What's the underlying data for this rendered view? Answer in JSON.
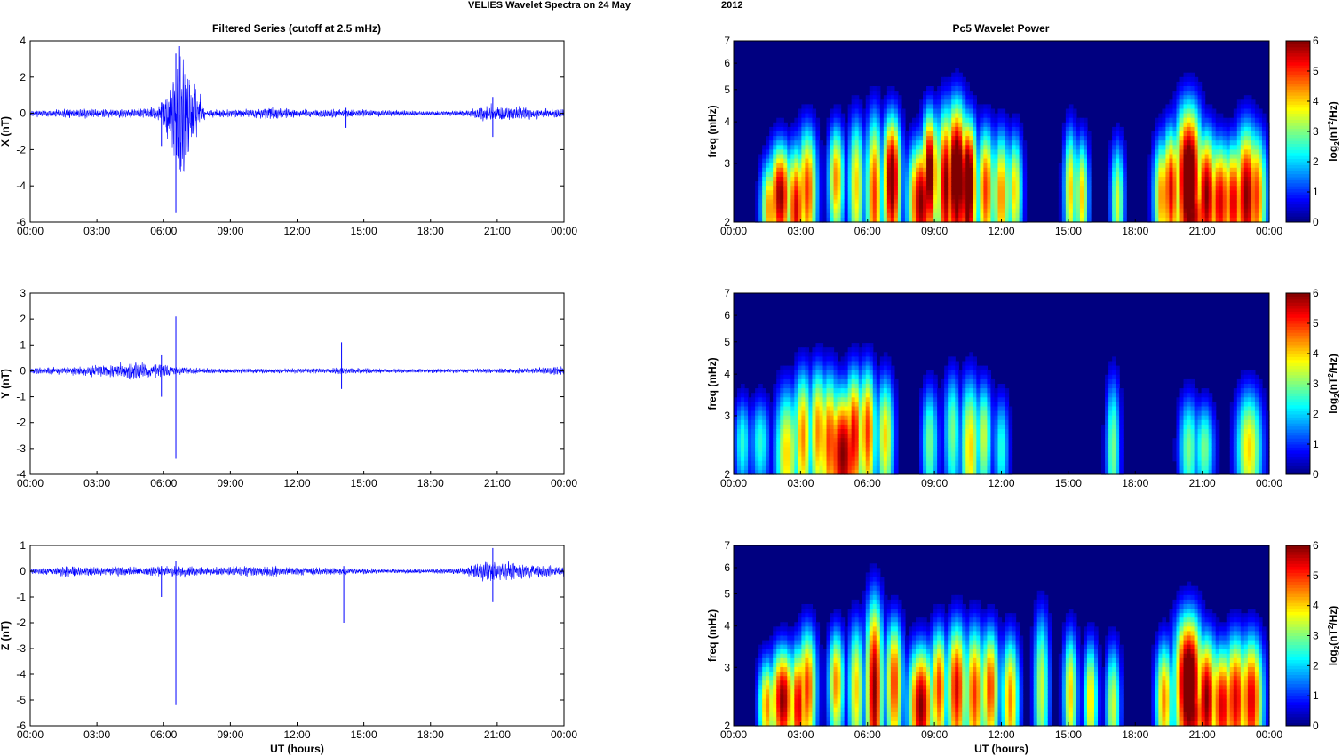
{
  "figure": {
    "title_left": "VELIES Wavelet Spectra on 24 May",
    "title_right": "2012",
    "left_column_title": "Filtered Series (cutoff at 2.5 mHz)",
    "right_column_title": "Pc5 Wavelet Power",
    "time_ticks": [
      "00:00",
      "03:00",
      "06:00",
      "09:00",
      "12:00",
      "15:00",
      "18:00",
      "21:00",
      "00:00"
    ],
    "xlabel": "UT (hours)",
    "freq_label": "freq (mHz)",
    "freq_ticks": [
      "2",
      "3",
      "4",
      "5",
      "6",
      "7"
    ],
    "colorbar_label": "log2(nT2/Hz)",
    "colorbar_label_parts": {
      "a": "log",
      "b": "2",
      "c": "(nT",
      "d": "2",
      "e": "/Hz)"
    },
    "colorbar_ticks": [
      "0",
      "1",
      "2",
      "3",
      "4",
      "5",
      "6"
    ],
    "line_color": "#0000ff"
  },
  "chart_data": [
    {
      "type": "line",
      "title": "Filtered Series (cutoff at 2.5 mHz)",
      "ylabel": "X (nT)",
      "xlabel": "",
      "xlim": [
        0,
        24
      ],
      "ylim": [
        -6,
        4
      ],
      "yticks": [
        "-6",
        "-4",
        "-2",
        "0",
        "2",
        "4"
      ],
      "series": [
        {
          "x": [
            0,
            1.5,
            2.5,
            3.5,
            5,
            5.9,
            6.5,
            6.6,
            8,
            10,
            10.7,
            12,
            14.2,
            16,
            18,
            19.5,
            20.5,
            21.5,
            23,
            24
          ],
          "amplitude": [
            0.2,
            0.3,
            0.35,
            0.3,
            0.3,
            0.5,
            3.3,
            -5.5,
            0.25,
            0.3,
            0.45,
            0.25,
            0.3,
            0.2,
            0.15,
            0.2,
            0.6,
            0.5,
            0.35,
            0.3
          ]
        }
      ],
      "spikes": [
        {
          "x": 5.9,
          "min": -1.8,
          "max": 0.6
        },
        {
          "x": 6.55,
          "min": -5.5,
          "max": 3.3
        },
        {
          "x": 14.2,
          "min": -0.8,
          "max": 0.3
        },
        {
          "x": 20.8,
          "min": -1.3,
          "max": 0.9
        }
      ]
    },
    {
      "type": "line",
      "ylabel": "Y (nT)",
      "xlim": [
        0,
        24
      ],
      "ylim": [
        -4,
        3
      ],
      "yticks": [
        "-4",
        "-3",
        "-2",
        "-1",
        "0",
        "1",
        "2",
        "3"
      ],
      "series": [
        {
          "x": [
            0,
            2,
            4,
            5,
            6,
            6.5,
            8,
            10,
            12,
            14,
            16,
            18,
            20,
            22,
            24
          ],
          "amplitude": [
            0.15,
            0.2,
            0.35,
            0.5,
            0.3,
            0.2,
            0.12,
            0.1,
            0.1,
            0.15,
            0.1,
            0.1,
            0.1,
            0.12,
            0.2
          ]
        }
      ],
      "spikes": [
        {
          "x": 5.9,
          "min": -1.0,
          "max": 0.6
        },
        {
          "x": 6.55,
          "min": -3.4,
          "max": 2.1
        },
        {
          "x": 14.0,
          "min": -0.7,
          "max": 1.1
        }
      ]
    },
    {
      "type": "line",
      "ylabel": "Z (nT)",
      "xlabel": "UT (hours)",
      "xlim": [
        0,
        24
      ],
      "ylim": [
        -6,
        1
      ],
      "yticks": [
        "-6",
        "-5",
        "-4",
        "-3",
        "-2",
        "-1",
        "0",
        "1"
      ],
      "series": [
        {
          "x": [
            0,
            2,
            3,
            6,
            8,
            11,
            12,
            14,
            16,
            18,
            19.5,
            20.7,
            21.5,
            23,
            24
          ],
          "amplitude": [
            0.1,
            0.3,
            0.2,
            0.25,
            0.2,
            0.25,
            0.2,
            0.15,
            0.1,
            0.1,
            0.15,
            0.55,
            0.4,
            0.3,
            0.25
          ]
        }
      ],
      "spikes": [
        {
          "x": 5.9,
          "min": -1.0,
          "max": 0.2
        },
        {
          "x": 6.55,
          "min": -5.2,
          "max": 0.4
        },
        {
          "x": 14.1,
          "min": -2.0,
          "max": 0.2
        },
        {
          "x": 20.8,
          "min": -1.2,
          "max": 0.9
        }
      ]
    },
    {
      "type": "heatmap",
      "title": "Pc5 Wavelet Power",
      "ylabel": "freq (mHz)",
      "xlim": [
        0,
        24
      ],
      "ylim": [
        2,
        7
      ],
      "yscale": "log",
      "clim": [
        0,
        6
      ],
      "colormap": "jet",
      "blobs": [
        [
          2.1,
          2.0,
          6,
          2.4,
          0.7
        ],
        [
          1.6,
          1.2,
          4.5,
          2.2,
          0.6
        ],
        [
          2.8,
          1.4,
          5.5,
          2.2,
          0.8
        ],
        [
          3.3,
          1.6,
          5,
          2.5,
          0.9
        ],
        [
          4.6,
          1.1,
          4.5,
          2.7,
          0.8
        ],
        [
          5.5,
          1.2,
          4,
          2.6,
          1.0
        ],
        [
          6.3,
          1.2,
          5,
          2.4,
          1.2
        ],
        [
          7.1,
          1.4,
          6.5,
          2.7,
          1.0
        ],
        [
          8.4,
          2.5,
          6,
          2.3,
          0.8
        ],
        [
          8.8,
          1.1,
          6.5,
          2.8,
          1.0
        ],
        [
          9.5,
          1.4,
          6,
          2.6,
          1.2
        ],
        [
          10.0,
          1.9,
          7,
          2.8,
          1.2
        ],
        [
          10.5,
          1.4,
          7,
          2.6,
          1.0
        ],
        [
          11.3,
          1.4,
          5,
          2.5,
          0.9
        ],
        [
          12.0,
          1.3,
          4.5,
          2.4,
          0.9
        ],
        [
          12.6,
          1.0,
          4,
          2.5,
          0.8
        ],
        [
          15.1,
          0.8,
          4,
          2.5,
          0.9
        ],
        [
          15.6,
          0.8,
          4,
          2.4,
          0.8
        ],
        [
          17.2,
          0.8,
          3.5,
          2.3,
          0.8
        ],
        [
          19.2,
          1.3,
          4.5,
          2.4,
          0.8
        ],
        [
          19.6,
          1.4,
          5.5,
          2.5,
          0.9
        ],
        [
          20.4,
          2.5,
          7,
          2.7,
          1.2
        ],
        [
          20.5,
          3.8,
          6,
          2.1,
          0.5
        ],
        [
          21.2,
          2.0,
          6,
          2.4,
          0.9
        ],
        [
          21.8,
          2.5,
          5.5,
          2.3,
          0.8
        ],
        [
          22.4,
          2.0,
          5.5,
          2.3,
          0.8
        ],
        [
          23.0,
          2.3,
          6,
          2.4,
          1.0
        ],
        [
          23.4,
          1.8,
          5,
          2.4,
          0.9
        ]
      ]
    },
    {
      "type": "heatmap",
      "ylabel": "freq (mHz)",
      "xlim": [
        0,
        24
      ],
      "ylim": [
        2,
        7
      ],
      "yscale": "log",
      "clim": [
        0,
        6
      ],
      "colormap": "jet",
      "blobs": [
        [
          0.4,
          1.2,
          2.5,
          2.5,
          0.6
        ],
        [
          1.2,
          1.5,
          2.5,
          2.5,
          0.6
        ],
        [
          2.4,
          2.2,
          4,
          2.3,
          0.9
        ],
        [
          3.1,
          1.5,
          4.5,
          2.6,
          1.0
        ],
        [
          3.8,
          1.6,
          4.5,
          2.7,
          1.0
        ],
        [
          4.3,
          1.8,
          5,
          2.5,
          1.0
        ],
        [
          4.9,
          3.5,
          6,
          2.3,
          0.9
        ],
        [
          5.4,
          1.5,
          5.5,
          2.6,
          1.0
        ],
        [
          6.0,
          1.2,
          5,
          2.7,
          1.0
        ],
        [
          6.8,
          1.3,
          4,
          2.6,
          0.9
        ],
        [
          8.8,
          1.2,
          3,
          2.5,
          0.8
        ],
        [
          9.8,
          1.2,
          3,
          2.7,
          0.9
        ],
        [
          10.6,
          1.6,
          4,
          2.4,
          1.0
        ],
        [
          11.2,
          1.2,
          3.5,
          2.6,
          0.8
        ],
        [
          12.0,
          1.0,
          2.5,
          2.4,
          0.7
        ],
        [
          17.0,
          0.8,
          3,
          2.4,
          1.0
        ],
        [
          20.4,
          1.6,
          3,
          2.4,
          0.7
        ],
        [
          21.1,
          1.6,
          3,
          2.4,
          0.6
        ],
        [
          23.1,
          2.4,
          4,
          2.4,
          0.8
        ]
      ]
    },
    {
      "type": "heatmap",
      "ylabel": "freq (mHz)",
      "xlabel": "UT (hours)",
      "xlim": [
        0,
        24
      ],
      "ylim": [
        2,
        7
      ],
      "yscale": "log",
      "clim": [
        0,
        6
      ],
      "colormap": "jet",
      "blobs": [
        [
          2.2,
          2.2,
          6,
          2.4,
          0.7
        ],
        [
          1.5,
          1.2,
          4.5,
          2.3,
          0.6
        ],
        [
          2.9,
          1.5,
          5.5,
          2.3,
          0.8
        ],
        [
          3.3,
          1.5,
          5,
          2.6,
          0.9
        ],
        [
          4.6,
          1.1,
          4.5,
          2.7,
          0.8
        ],
        [
          5.5,
          1.2,
          4,
          2.6,
          1.0
        ],
        [
          6.3,
          1.3,
          6,
          2.6,
          1.5
        ],
        [
          7.2,
          1.3,
          5,
          2.7,
          1.0
        ],
        [
          8.4,
          2.4,
          6,
          2.3,
          0.8
        ],
        [
          9.2,
          1.2,
          5,
          2.6,
          0.9
        ],
        [
          10.0,
          1.6,
          5.5,
          2.6,
          1.0
        ],
        [
          10.8,
          1.6,
          5,
          2.5,
          1.0
        ],
        [
          11.5,
          1.4,
          5,
          2.6,
          0.9
        ],
        [
          12.4,
          1.3,
          4.5,
          2.4,
          0.9
        ],
        [
          13.8,
          1.0,
          3.5,
          2.6,
          1.2
        ],
        [
          15.1,
          0.9,
          4,
          2.5,
          0.9
        ],
        [
          16.0,
          0.9,
          4,
          2.4,
          0.8
        ],
        [
          17.0,
          0.9,
          3.5,
          2.3,
          0.8
        ],
        [
          19.3,
          1.3,
          4.5,
          2.4,
          0.8
        ],
        [
          20.4,
          2.7,
          7,
          2.7,
          1.1
        ],
        [
          20.5,
          3.5,
          6,
          2.2,
          0.5
        ],
        [
          21.2,
          2.0,
          6,
          2.4,
          0.9
        ],
        [
          21.9,
          2.3,
          5.5,
          2.3,
          0.8
        ],
        [
          22.5,
          2.2,
          5.5,
          2.4,
          0.9
        ],
        [
          23.2,
          2.1,
          5.5,
          2.4,
          0.9
        ]
      ]
    }
  ]
}
